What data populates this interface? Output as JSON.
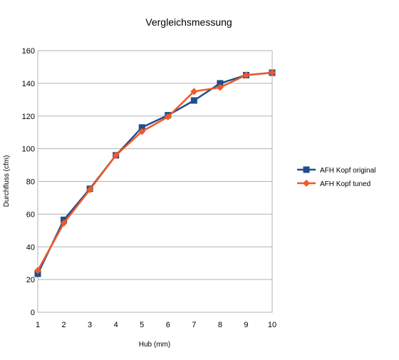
{
  "chart_data": {
    "type": "line",
    "title": "Vergleichsmessung",
    "xlabel": "Hub (mm)",
    "ylabel": "Durchfluss (cfm)",
    "x": [
      1,
      2,
      3,
      4,
      5,
      6,
      7,
      8,
      9,
      10
    ],
    "x_ticks": [
      "1",
      "2",
      "3",
      "4",
      "5",
      "6",
      "7",
      "8",
      "9",
      "10"
    ],
    "y_ticks": [
      "0",
      "20",
      "40",
      "60",
      "80",
      "100",
      "120",
      "140",
      "160"
    ],
    "ylim": [
      0,
      160
    ],
    "xlim": [
      1,
      10
    ],
    "grid": true,
    "legend_position": "right",
    "series": [
      {
        "name": "AFH Kopf original",
        "color": "#1f4e8c",
        "marker": "square",
        "values": [
          23.5,
          56.5,
          75.5,
          96,
          113,
          120.5,
          129.5,
          140,
          145,
          146.5
        ]
      },
      {
        "name": "AFH Kopf tuned",
        "color": "#f0582a",
        "marker": "diamond",
        "values": [
          25.5,
          54.5,
          75,
          96,
          110.5,
          119.5,
          135,
          137.5,
          145,
          146.5
        ]
      }
    ]
  }
}
